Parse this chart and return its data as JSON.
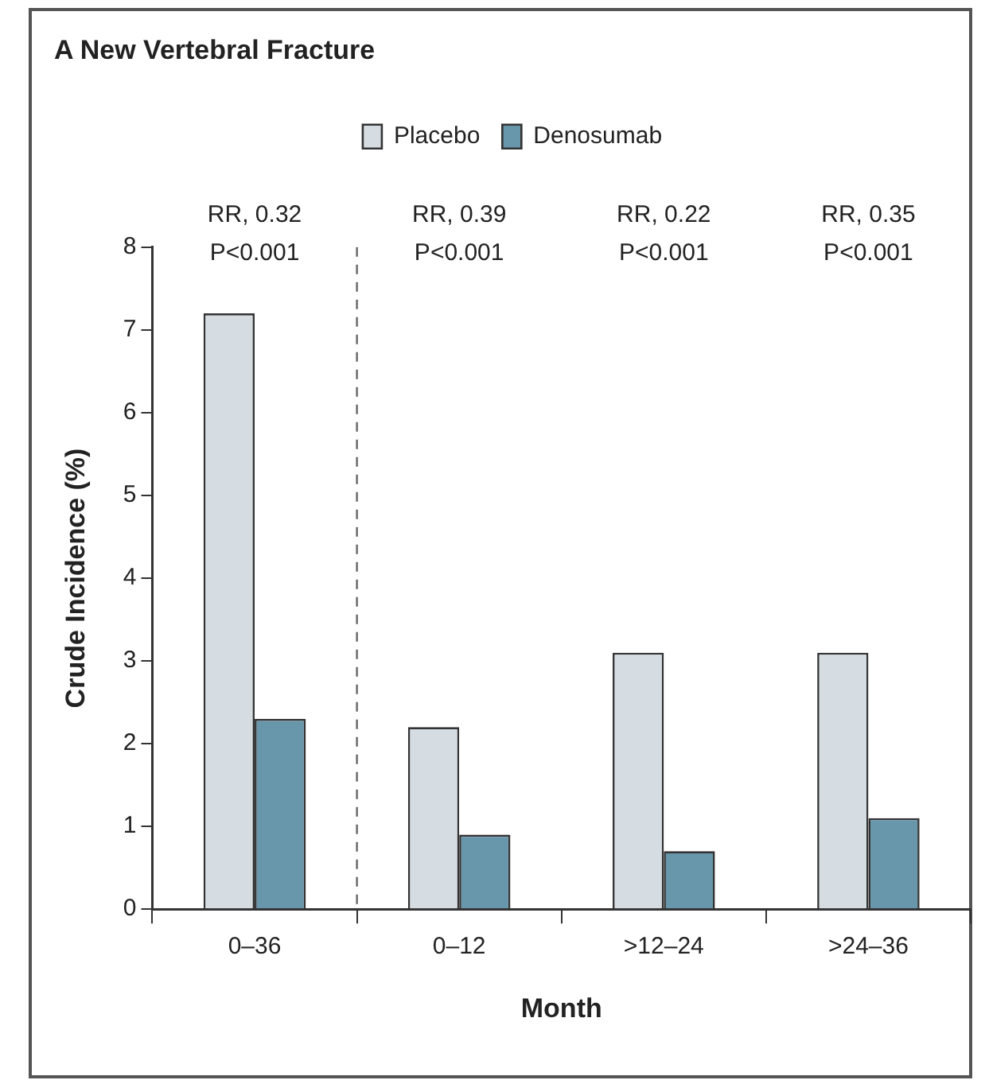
{
  "chart_data": {
    "type": "bar",
    "title": "A New Vertebral Fracture",
    "xlabel": "Month",
    "ylabel": "Crude Incidence (%)",
    "categories": [
      "0–36",
      "0–12",
      ">12–24",
      ">24–36"
    ],
    "series": [
      {
        "name": "Placebo",
        "color": "#d5dde3",
        "values": [
          7.2,
          2.2,
          3.1,
          3.1
        ]
      },
      {
        "name": "Denosumab",
        "color": "#6896aa",
        "values": [
          2.3,
          0.9,
          0.7,
          1.1
        ]
      }
    ],
    "ylim": [
      0,
      8
    ],
    "yticks": [
      0,
      1,
      2,
      3,
      4,
      5,
      6,
      7,
      8
    ],
    "grid": false,
    "legend": "top",
    "annotations": [
      "RR, 0.32\nP<0.001",
      "RR, 0.39\nP<0.001",
      "RR, 0.22\nP<0.001",
      "RR, 0.35\nP<0.001"
    ]
  }
}
